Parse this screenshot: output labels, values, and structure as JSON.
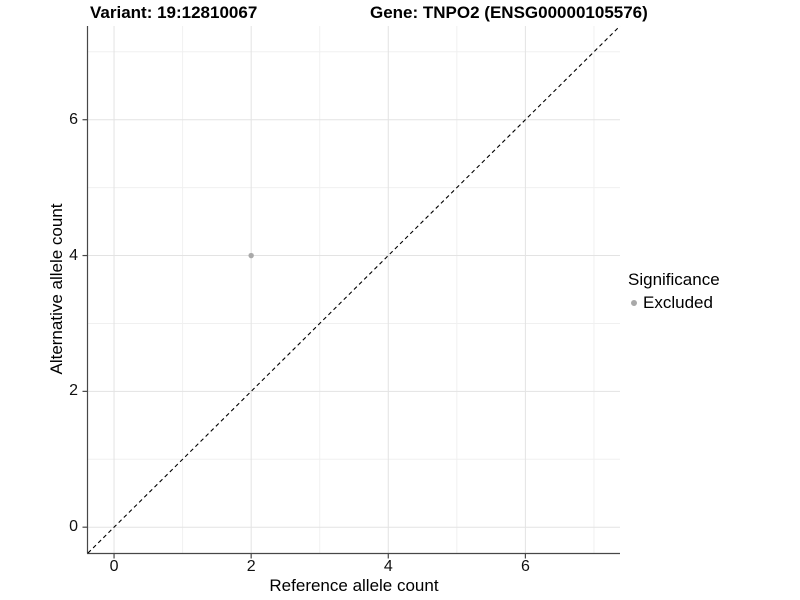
{
  "titles": {
    "variant": "Variant: 19:12810067",
    "gene": "Gene: TNPO2 (ENSG00000105576)"
  },
  "axes": {
    "x": {
      "label": "Reference allele count"
    },
    "y": {
      "label": "Alternative allele count"
    }
  },
  "legend": {
    "title": "Significance",
    "items": [
      {
        "label": "Excluded",
        "color": "#a9a9a9"
      }
    ]
  },
  "colors": {
    "background": "#ffffff",
    "grid_major": "#e3e3e3",
    "grid_minor": "#f0f0f0",
    "axis_line": "#474747",
    "tick_mark": "#474747",
    "dashed_line": "#000000",
    "point": "#a9a9a9"
  },
  "chart_data": {
    "type": "scatter",
    "title": "Variant: 19:12810067 — Gene: TNPO2 (ENSG00000105576)",
    "xlabel": "Reference allele count",
    "ylabel": "Alternative allele count",
    "xlim": [
      -0.38,
      7.38
    ],
    "ylim": [
      -0.38,
      7.38
    ],
    "x_major_ticks": [
      0,
      2,
      4,
      6
    ],
    "y_major_ticks": [
      0,
      2,
      4,
      6
    ],
    "x_minor_gridlines": [
      1,
      3,
      5,
      7
    ],
    "y_minor_gridlines": [
      1,
      3,
      5,
      7
    ],
    "grid": "major+minor",
    "legend_position": "right",
    "series": [
      {
        "name": "Excluded",
        "color": "#a9a9a9",
        "points": [
          {
            "x": 2,
            "y": 4
          }
        ]
      }
    ],
    "annotations": [
      {
        "type": "abline",
        "slope": 1,
        "intercept": 0,
        "style": "dashed",
        "color": "#000000"
      }
    ]
  }
}
